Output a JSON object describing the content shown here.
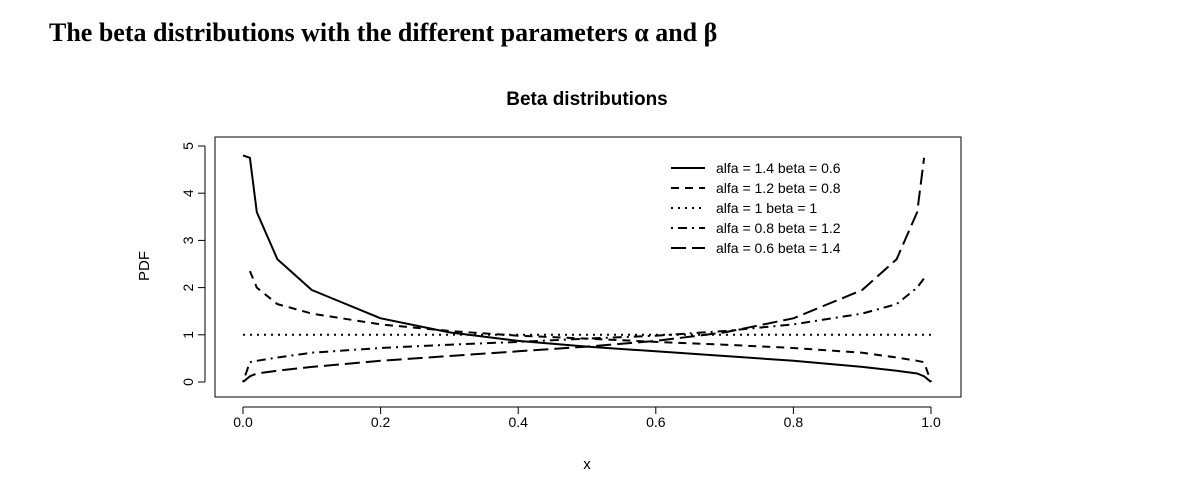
{
  "heading": "The beta distributions with the different parameters α and β",
  "chart_data": {
    "type": "line",
    "title": "Beta distributions",
    "xlabel": "x",
    "ylabel": "PDF",
    "xlim": [
      0,
      1
    ],
    "ylim": [
      0,
      5
    ],
    "x_ticks": [
      "0.0",
      "0.2",
      "0.4",
      "0.6",
      "0.8",
      "1.0"
    ],
    "y_ticks": [
      "0",
      "1",
      "2",
      "3",
      "4",
      "5"
    ],
    "grid": false,
    "legend_position": "top-right",
    "line_color": "#000000",
    "series": [
      {
        "name": "alfa = 1.4 beta = 0.6",
        "alpha": 1.4,
        "beta": 0.6,
        "line_style": "solid",
        "x": [
          0.0,
          0.01,
          0.02,
          0.05,
          0.1,
          0.2,
          0.3,
          0.4,
          0.5,
          0.6,
          0.7,
          0.8,
          0.9,
          0.95,
          0.98,
          0.99,
          1.0
        ],
        "values": [
          4.8,
          4.75,
          3.6,
          2.6,
          1.95,
          1.35,
          1.05,
          0.87,
          0.75,
          0.65,
          0.55,
          0.45,
          0.32,
          0.24,
          0.18,
          0.12,
          0.0
        ]
      },
      {
        "name": "alfa = 1.2 beta = 0.8",
        "alpha": 1.2,
        "beta": 0.8,
        "line_style": "dashed",
        "x": [
          0.01,
          0.02,
          0.05,
          0.1,
          0.2,
          0.3,
          0.4,
          0.5,
          0.6,
          0.7,
          0.8,
          0.9,
          0.95,
          0.98,
          0.99,
          1.0
        ],
        "values": [
          2.35,
          2.0,
          1.65,
          1.45,
          1.22,
          1.08,
          0.98,
          0.92,
          0.85,
          0.79,
          0.72,
          0.62,
          0.52,
          0.45,
          0.42,
          0.0
        ]
      },
      {
        "name": "alfa = 1 beta = 1",
        "alpha": 1.0,
        "beta": 1.0,
        "line_style": "dotted",
        "x": [
          0.0,
          1.0
        ],
        "values": [
          1.0,
          1.0
        ]
      },
      {
        "name": "alfa = 0.8 beta = 1.2",
        "alpha": 0.8,
        "beta": 1.2,
        "line_style": "dotdash",
        "x": [
          0.0,
          0.01,
          0.02,
          0.05,
          0.1,
          0.2,
          0.3,
          0.4,
          0.5,
          0.6,
          0.7,
          0.8,
          0.9,
          0.95,
          0.98,
          0.99
        ],
        "values": [
          0.0,
          0.42,
          0.45,
          0.52,
          0.62,
          0.72,
          0.79,
          0.85,
          0.92,
          0.98,
          1.08,
          1.22,
          1.45,
          1.65,
          2.0,
          2.2
        ]
      },
      {
        "name": "alfa = 0.6 beta = 1.4",
        "alpha": 0.6,
        "beta": 1.4,
        "line_style": "longdash",
        "x": [
          0.0,
          0.01,
          0.02,
          0.05,
          0.1,
          0.2,
          0.3,
          0.4,
          0.5,
          0.6,
          0.7,
          0.8,
          0.9,
          0.95,
          0.98,
          0.99
        ],
        "values": [
          0.0,
          0.12,
          0.18,
          0.24,
          0.32,
          0.45,
          0.55,
          0.65,
          0.75,
          0.87,
          1.05,
          1.35,
          1.95,
          2.6,
          3.6,
          4.75
        ]
      }
    ]
  }
}
